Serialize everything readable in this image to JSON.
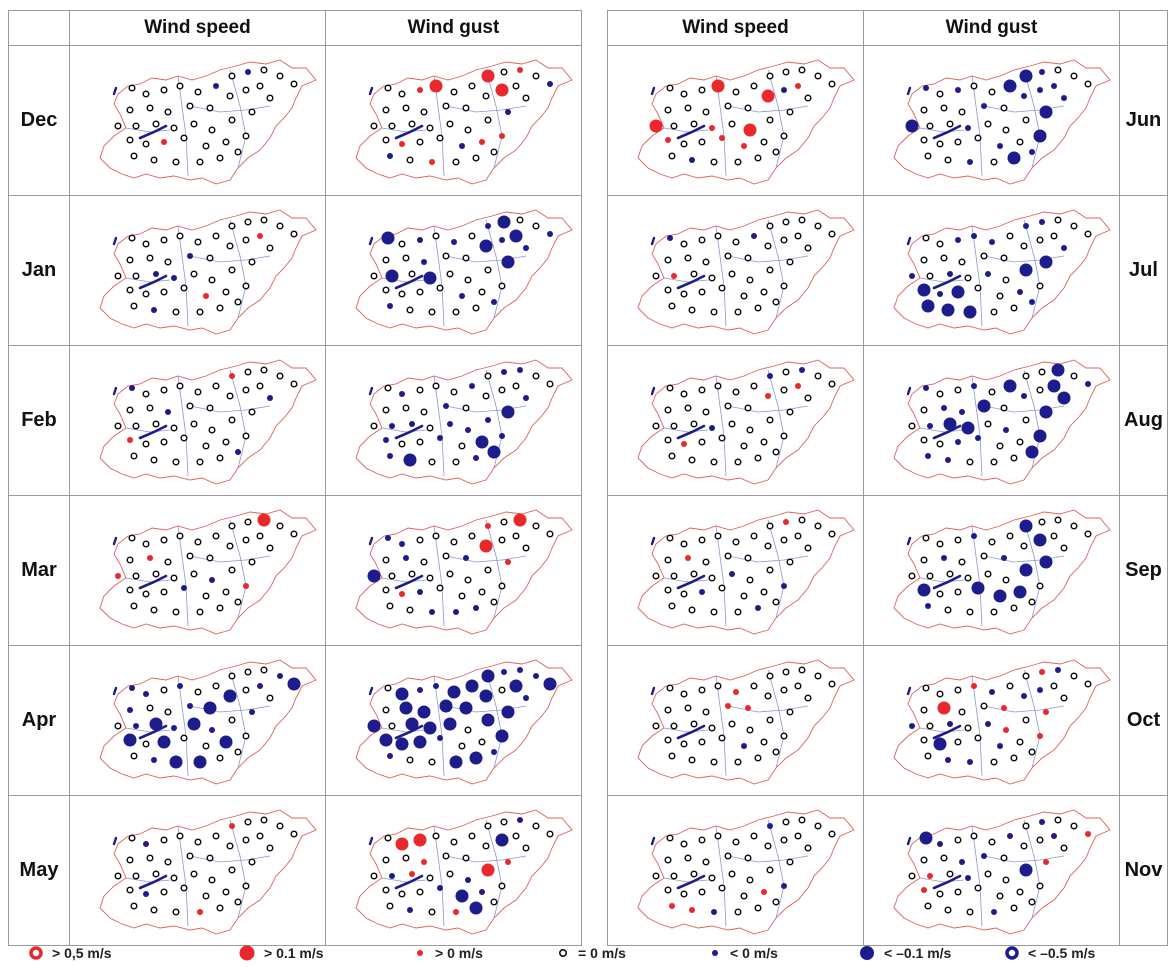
{
  "left_panel": {
    "columns": [
      "Wind speed",
      "Wind gust"
    ],
    "months": [
      "Dec",
      "Jan",
      "Feb",
      "Mar",
      "Apr",
      "May"
    ]
  },
  "right_panel": {
    "columns": [
      "Wind speed",
      "Wind gust"
    ],
    "months": [
      "Jun",
      "Jul",
      "Aug",
      "Sep",
      "Oct",
      "Nov"
    ]
  },
  "legend": [
    {
      "symbol": "ring-red",
      "label": "> 0,5 m/s"
    },
    {
      "symbol": "dot-red-large",
      "label": "> 0.1 m/s"
    },
    {
      "symbol": "dot-red-small",
      "label": "> 0 m/s"
    },
    {
      "symbol": "ring-black-small",
      "label": "= 0 m/s"
    },
    {
      "symbol": "dot-navy-small",
      "label": "< 0 m/s"
    },
    {
      "symbol": "dot-navy-large",
      "label": "< –0.1 m/s"
    },
    {
      "symbol": "ring-navy",
      "label": "< –0.5 m/s"
    }
  ],
  "colors": {
    "positive": "#e8282b",
    "negative": "#1c1c8c",
    "border": "#e06060",
    "river": "#8e94d2",
    "zero": "#111111"
  }
}
